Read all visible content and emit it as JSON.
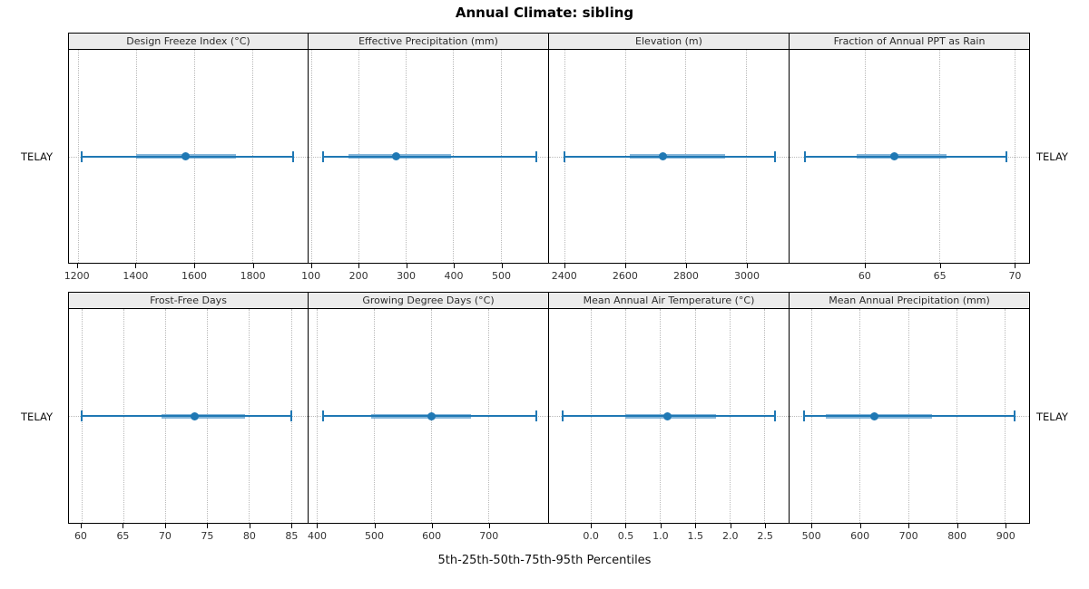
{
  "title": "Annual Climate: sibling",
  "caption": "5th-25th-50th-75th-95th Percentiles",
  "row_label_left": "TELAY",
  "row_label_right": "TELAY",
  "colors": {
    "line": "#1f78b4",
    "band": "#85b5d9",
    "grid": "#b9b9b9",
    "strip_bg": "#ececec",
    "panel_border": "#000000"
  },
  "chart_data": {
    "type": "dot-whisker",
    "subtype": "percentile interval plot (5th-25th-50th-75th-95th)",
    "title": "Annual Climate: sibling",
    "site": "TELAY",
    "layout": {
      "rows": 2,
      "cols": 4,
      "grid": "dotted",
      "legend": "none"
    },
    "panels": [
      {
        "panel": "Design Freeze Index (°C)",
        "xlim": [
          1170,
          1990
        ],
        "ticks": [
          1200,
          1400,
          1600,
          1800
        ],
        "tick_labels": [
          "1200",
          "1400",
          "1600",
          "1800"
        ],
        "site": "TELAY",
        "percentiles": {
          "p5": 1215,
          "p25": 1400,
          "p50": 1570,
          "p75": 1745,
          "p95": 1940
        }
      },
      {
        "panel": "Effective Precipitation (mm)",
        "xlim": [
          95,
          600
        ],
        "ticks": [
          100,
          200,
          300,
          400,
          500
        ],
        "tick_labels": [
          "100",
          "200",
          "300",
          "400",
          "500"
        ],
        "site": "TELAY",
        "percentiles": {
          "p5": 125,
          "p25": 180,
          "p50": 280,
          "p75": 395,
          "p95": 575
        }
      },
      {
        "panel": "Elevation (m)",
        "xlim": [
          2350,
          3140
        ],
        "ticks": [
          2400,
          2600,
          2800,
          3000
        ],
        "tick_labels": [
          "2400",
          "2600",
          "2800",
          "3000"
        ],
        "site": "TELAY",
        "percentiles": {
          "p5": 2400,
          "p25": 2615,
          "p50": 2725,
          "p75": 2930,
          "p95": 3095
        }
      },
      {
        "panel": "Fraction of Annual PPT as Rain",
        "xlim": [
          55,
          71
        ],
        "ticks": [
          60,
          65,
          70
        ],
        "tick_labels": [
          "60",
          "65",
          "70"
        ],
        "site": "TELAY",
        "percentiles": {
          "p5": 56,
          "p25": 59.5,
          "p50": 62,
          "p75": 65.5,
          "p95": 69.5
        }
      },
      {
        "panel": "Frost-Free Days",
        "xlim": [
          58.5,
          87
        ],
        "ticks": [
          60,
          65,
          70,
          75,
          80,
          85
        ],
        "tick_labels": [
          "60",
          "65",
          "70",
          "75",
          "80",
          "85"
        ],
        "site": "TELAY",
        "percentiles": {
          "p5": 60,
          "p25": 69.5,
          "p50": 73.5,
          "p75": 79.5,
          "p95": 85
        }
      },
      {
        "panel": "Growing Degree Days (°C)",
        "xlim": [
          385,
          805
        ],
        "ticks": [
          400,
          500,
          600,
          700
        ],
        "tick_labels": [
          "400",
          "500",
          "600",
          "700"
        ],
        "site": "TELAY",
        "percentiles": {
          "p5": 410,
          "p25": 495,
          "p50": 600,
          "p75": 670,
          "p95": 785
        }
      },
      {
        "panel": "Mean Annual Air Temperature (°C)",
        "xlim": [
          -0.6,
          2.85
        ],
        "ticks": [
          0.0,
          0.5,
          1.0,
          1.5,
          2.0,
          2.5
        ],
        "tick_labels": [
          "0.0",
          "0.5",
          "1.0",
          "1.5",
          "2.0",
          "2.5"
        ],
        "site": "TELAY",
        "percentiles": {
          "p5": -0.4,
          "p25": 0.5,
          "p50": 1.1,
          "p75": 1.8,
          "p95": 2.65
        }
      },
      {
        "panel": "Mean Annual Precipitation (mm)",
        "xlim": [
          455,
          950
        ],
        "ticks": [
          500,
          600,
          700,
          800,
          900
        ],
        "tick_labels": [
          "500",
          "600",
          "700",
          "800",
          "900"
        ],
        "site": "TELAY",
        "percentiles": {
          "p5": 485,
          "p25": 530,
          "p50": 630,
          "p75": 750,
          "p95": 920
        }
      }
    ]
  }
}
